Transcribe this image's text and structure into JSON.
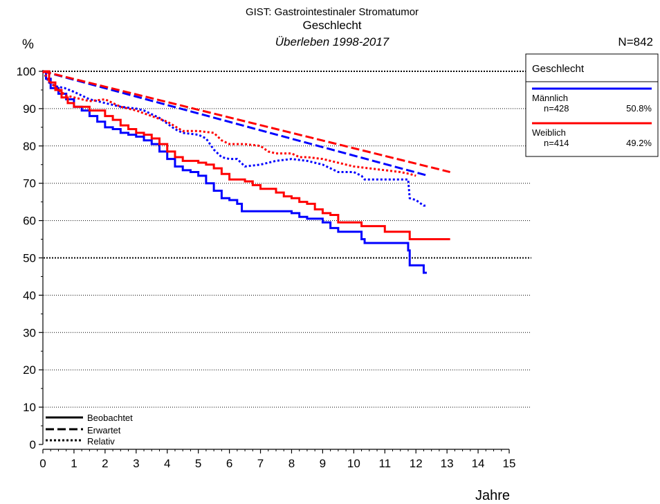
{
  "chart_data": {
    "type": "line",
    "title": "GIST: Gastrointestinaler Stromatumor",
    "subtitle": "Geschlecht",
    "subtitle2": "Überleben 1998-2017",
    "n_total": "N=842",
    "ylabel": "%",
    "xlabel": "Jahre",
    "xlim": [
      0,
      15
    ],
    "ylim": [
      0,
      100
    ],
    "x_ticks": [
      "0",
      "1",
      "2",
      "3",
      "4",
      "5",
      "6",
      "7",
      "8",
      "9",
      "10",
      "11",
      "12",
      "13",
      "14",
      "15"
    ],
    "y_ticks": [
      "0",
      "10",
      "20",
      "30",
      "40",
      "50",
      "60",
      "70",
      "80",
      "90",
      "100"
    ],
    "grid": true,
    "legend_box": {
      "title": "Geschlecht",
      "placement": "right",
      "entries": [
        {
          "name": "Männlich",
          "n": "n=428",
          "pct": "50.8%",
          "color": "#0000ff"
        },
        {
          "name": "Weiblich",
          "n": "n=414",
          "pct": "49.2%",
          "color": "#ff0000"
        }
      ]
    },
    "style_legend": {
      "placement": "bottom-left",
      "entries": [
        {
          "label": "Beobachtet",
          "dash": "solid"
        },
        {
          "label": "Erwartet",
          "dash": "dashed"
        },
        {
          "label": "Relativ",
          "dash": "dotted"
        }
      ]
    },
    "series": [
      {
        "group": "Männlich",
        "kind": "Beobachtet",
        "color": "#0000ff",
        "points": [
          [
            0,
            100
          ],
          [
            0.1,
            98
          ],
          [
            0.25,
            95.5
          ],
          [
            0.5,
            94
          ],
          [
            0.75,
            92.5
          ],
          [
            1,
            90.5
          ],
          [
            1.25,
            89.5
          ],
          [
            1.5,
            88
          ],
          [
            1.75,
            86.5
          ],
          [
            2,
            85
          ],
          [
            2.25,
            84.5
          ],
          [
            2.5,
            83.5
          ],
          [
            2.75,
            83
          ],
          [
            3,
            82.5
          ],
          [
            3.25,
            81.5
          ],
          [
            3.5,
            80.5
          ],
          [
            3.75,
            78.5
          ],
          [
            4,
            76.5
          ],
          [
            4.25,
            74.5
          ],
          [
            4.5,
            73.5
          ],
          [
            4.75,
            73
          ],
          [
            5,
            72
          ],
          [
            5.25,
            70
          ],
          [
            5.5,
            68
          ],
          [
            5.75,
            66
          ],
          [
            6,
            65.5
          ],
          [
            6.25,
            64.5
          ],
          [
            6.4,
            62.5
          ],
          [
            7,
            62.5
          ],
          [
            7.5,
            62.5
          ],
          [
            8,
            62
          ],
          [
            8.25,
            61
          ],
          [
            8.5,
            60.5
          ],
          [
            9,
            59.5
          ],
          [
            9.25,
            58
          ],
          [
            9.5,
            57
          ],
          [
            10,
            57
          ],
          [
            10.25,
            55
          ],
          [
            10.35,
            54
          ],
          [
            11,
            54
          ],
          [
            11.5,
            54
          ],
          [
            11.75,
            52
          ],
          [
            11.8,
            48
          ],
          [
            12,
            48
          ],
          [
            12.2,
            48
          ],
          [
            12.25,
            46
          ],
          [
            12.35,
            46
          ]
        ]
      },
      {
        "group": "Weiblich",
        "kind": "Beobachtet",
        "color": "#ff0000",
        "points": [
          [
            0,
            100
          ],
          [
            0.2,
            97
          ],
          [
            0.4,
            95
          ],
          [
            0.6,
            93
          ],
          [
            0.8,
            91.5
          ],
          [
            1,
            90.5
          ],
          [
            1.5,
            89.5
          ],
          [
            2,
            88
          ],
          [
            2.25,
            87
          ],
          [
            2.5,
            85.5
          ],
          [
            2.75,
            84.5
          ],
          [
            3,
            83.5
          ],
          [
            3.25,
            83
          ],
          [
            3.5,
            82
          ],
          [
            3.75,
            80.5
          ],
          [
            4,
            78.5
          ],
          [
            4.25,
            77
          ],
          [
            4.5,
            76
          ],
          [
            5,
            75.5
          ],
          [
            5.25,
            75
          ],
          [
            5.5,
            74
          ],
          [
            5.75,
            72.5
          ],
          [
            6,
            71
          ],
          [
            6.5,
            70.5
          ],
          [
            6.75,
            69.5
          ],
          [
            7,
            68.5
          ],
          [
            7.5,
            67.5
          ],
          [
            7.75,
            66.5
          ],
          [
            8,
            66
          ],
          [
            8.25,
            65
          ],
          [
            8.5,
            64.5
          ],
          [
            8.75,
            63
          ],
          [
            9,
            62
          ],
          [
            9.25,
            61.5
          ],
          [
            9.5,
            59.5
          ],
          [
            10,
            59.5
          ],
          [
            10.25,
            58.5
          ],
          [
            10.5,
            58.5
          ],
          [
            11,
            57
          ],
          [
            11.75,
            57
          ],
          [
            11.8,
            55
          ],
          [
            12,
            55
          ],
          [
            12.5,
            55
          ],
          [
            13.1,
            55
          ]
        ]
      },
      {
        "group": "Männlich",
        "kind": "Erwartet",
        "color": "#0000ff",
        "points": [
          [
            0,
            100
          ],
          [
            12.4,
            72
          ]
        ]
      },
      {
        "group": "Weiblich",
        "kind": "Erwartet",
        "color": "#ff0000",
        "points": [
          [
            0,
            100
          ],
          [
            13.1,
            73
          ]
        ]
      },
      {
        "group": "Männlich",
        "kind": "Relativ",
        "color": "#0000ff",
        "points": [
          [
            0,
            100
          ],
          [
            0.2,
            97
          ],
          [
            0.4,
            96
          ],
          [
            0.7,
            95.5
          ],
          [
            1,
            94.5
          ],
          [
            1.5,
            92.5
          ],
          [
            2,
            91.5
          ],
          [
            2.5,
            90.5
          ],
          [
            3,
            90
          ],
          [
            3.25,
            89.5
          ],
          [
            3.5,
            88.5
          ],
          [
            3.75,
            87.5
          ],
          [
            4,
            86
          ],
          [
            4.25,
            84.5
          ],
          [
            4.5,
            83.5
          ],
          [
            5,
            83
          ],
          [
            5.25,
            82
          ],
          [
            5.5,
            79
          ],
          [
            5.75,
            77
          ],
          [
            6,
            76.5
          ],
          [
            6.25,
            76.5
          ],
          [
            6.5,
            74.5
          ],
          [
            7,
            75
          ],
          [
            7.5,
            76
          ],
          [
            8,
            76.5
          ],
          [
            8.5,
            76
          ],
          [
            9,
            75
          ],
          [
            9.25,
            74
          ],
          [
            9.5,
            73
          ],
          [
            10,
            73
          ],
          [
            10.25,
            72
          ],
          [
            10.35,
            71
          ],
          [
            11,
            71
          ],
          [
            11.5,
            71
          ],
          [
            11.75,
            71
          ],
          [
            11.8,
            66
          ],
          [
            12,
            65.5
          ],
          [
            12.25,
            64
          ],
          [
            12.35,
            64
          ]
        ]
      },
      {
        "group": "Weiblich",
        "kind": "Relativ",
        "color": "#ff0000",
        "points": [
          [
            0,
            100
          ],
          [
            0.25,
            97
          ],
          [
            0.5,
            95
          ],
          [
            0.75,
            93.5
          ],
          [
            1,
            93
          ],
          [
            1.5,
            92
          ],
          [
            2,
            92.5
          ],
          [
            2.5,
            90.5
          ],
          [
            3,
            89.5
          ],
          [
            3.5,
            88
          ],
          [
            4,
            86.5
          ],
          [
            4.5,
            84
          ],
          [
            5,
            84
          ],
          [
            5.5,
            83.5
          ],
          [
            5.75,
            81.5
          ],
          [
            6,
            80.5
          ],
          [
            6.5,
            80.5
          ],
          [
            7,
            80
          ],
          [
            7.25,
            78.5
          ],
          [
            7.5,
            78
          ],
          [
            8,
            78
          ],
          [
            8.25,
            77
          ],
          [
            8.5,
            77
          ],
          [
            9,
            76.5
          ],
          [
            9.5,
            75.5
          ],
          [
            10,
            74.5
          ],
          [
            10.5,
            74
          ],
          [
            11,
            73.5
          ],
          [
            11.5,
            73
          ],
          [
            11.8,
            72.5
          ],
          [
            12,
            72
          ]
        ]
      }
    ]
  }
}
